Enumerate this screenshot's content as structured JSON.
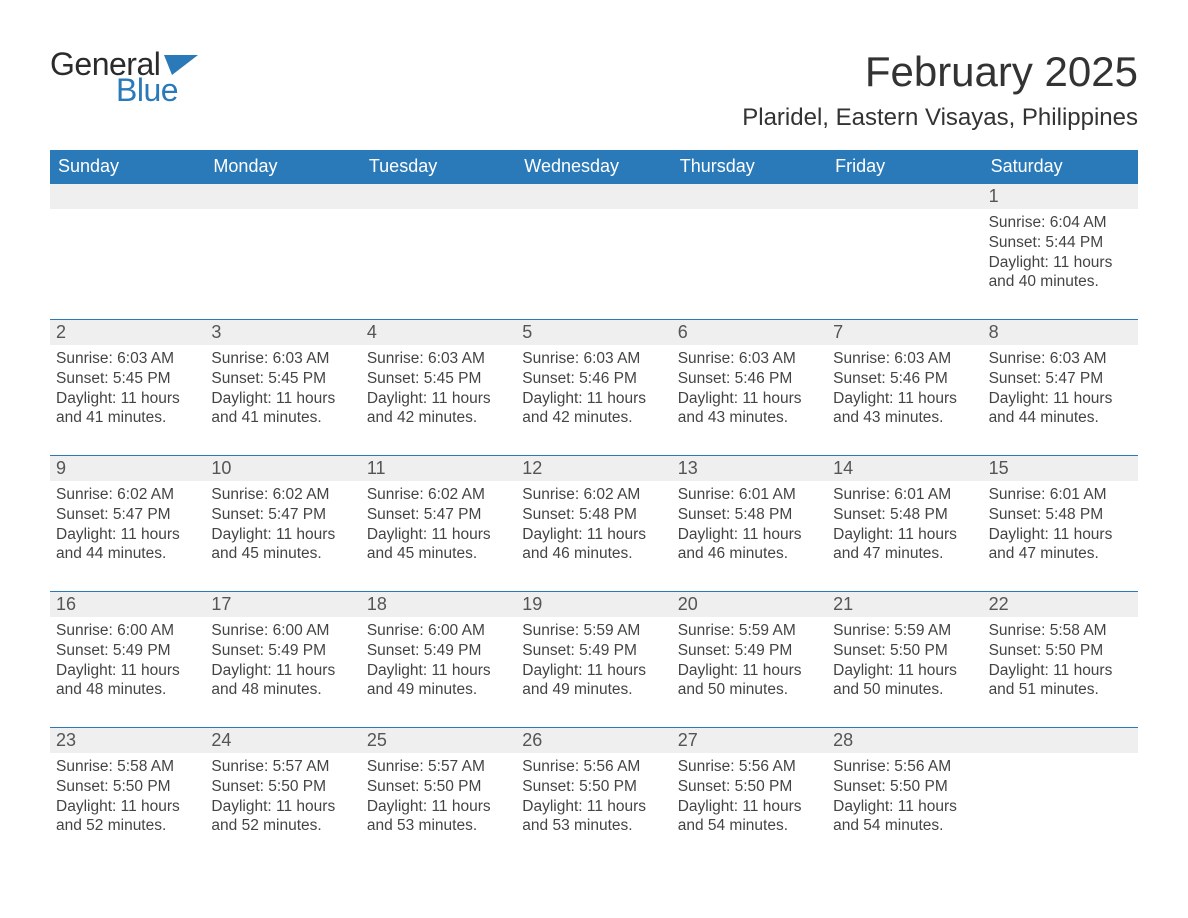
{
  "logo": {
    "text1": "General",
    "text2": "Blue"
  },
  "title": "February 2025",
  "location": "Plaridel, Eastern Visayas, Philippines",
  "colors": {
    "header_bg": "#2a7ab9",
    "header_text": "#ffffff",
    "daynum_bg": "#efefef",
    "border_top": "#2a7ab9",
    "body_text": "#444444",
    "logo_blue": "#2a7ab9"
  },
  "weekdays": [
    "Sunday",
    "Monday",
    "Tuesday",
    "Wednesday",
    "Thursday",
    "Friday",
    "Saturday"
  ],
  "weeks": [
    {
      "nums": [
        "",
        "",
        "",
        "",
        "",
        "",
        "1"
      ],
      "cells": [
        {},
        {},
        {},
        {},
        {},
        {},
        {
          "sunrise": "Sunrise: 6:04 AM",
          "sunset": "Sunset: 5:44 PM",
          "daylight": "Daylight: 11 hours and 40 minutes."
        }
      ]
    },
    {
      "nums": [
        "2",
        "3",
        "4",
        "5",
        "6",
        "7",
        "8"
      ],
      "cells": [
        {
          "sunrise": "Sunrise: 6:03 AM",
          "sunset": "Sunset: 5:45 PM",
          "daylight": "Daylight: 11 hours and 41 minutes."
        },
        {
          "sunrise": "Sunrise: 6:03 AM",
          "sunset": "Sunset: 5:45 PM",
          "daylight": "Daylight: 11 hours and 41 minutes."
        },
        {
          "sunrise": "Sunrise: 6:03 AM",
          "sunset": "Sunset: 5:45 PM",
          "daylight": "Daylight: 11 hours and 42 minutes."
        },
        {
          "sunrise": "Sunrise: 6:03 AM",
          "sunset": "Sunset: 5:46 PM",
          "daylight": "Daylight: 11 hours and 42 minutes."
        },
        {
          "sunrise": "Sunrise: 6:03 AM",
          "sunset": "Sunset: 5:46 PM",
          "daylight": "Daylight: 11 hours and 43 minutes."
        },
        {
          "sunrise": "Sunrise: 6:03 AM",
          "sunset": "Sunset: 5:46 PM",
          "daylight": "Daylight: 11 hours and 43 minutes."
        },
        {
          "sunrise": "Sunrise: 6:03 AM",
          "sunset": "Sunset: 5:47 PM",
          "daylight": "Daylight: 11 hours and 44 minutes."
        }
      ]
    },
    {
      "nums": [
        "9",
        "10",
        "11",
        "12",
        "13",
        "14",
        "15"
      ],
      "cells": [
        {
          "sunrise": "Sunrise: 6:02 AM",
          "sunset": "Sunset: 5:47 PM",
          "daylight": "Daylight: 11 hours and 44 minutes."
        },
        {
          "sunrise": "Sunrise: 6:02 AM",
          "sunset": "Sunset: 5:47 PM",
          "daylight": "Daylight: 11 hours and 45 minutes."
        },
        {
          "sunrise": "Sunrise: 6:02 AM",
          "sunset": "Sunset: 5:47 PM",
          "daylight": "Daylight: 11 hours and 45 minutes."
        },
        {
          "sunrise": "Sunrise: 6:02 AM",
          "sunset": "Sunset: 5:48 PM",
          "daylight": "Daylight: 11 hours and 46 minutes."
        },
        {
          "sunrise": "Sunrise: 6:01 AM",
          "sunset": "Sunset: 5:48 PM",
          "daylight": "Daylight: 11 hours and 46 minutes."
        },
        {
          "sunrise": "Sunrise: 6:01 AM",
          "sunset": "Sunset: 5:48 PM",
          "daylight": "Daylight: 11 hours and 47 minutes."
        },
        {
          "sunrise": "Sunrise: 6:01 AM",
          "sunset": "Sunset: 5:48 PM",
          "daylight": "Daylight: 11 hours and 47 minutes."
        }
      ]
    },
    {
      "nums": [
        "16",
        "17",
        "18",
        "19",
        "20",
        "21",
        "22"
      ],
      "cells": [
        {
          "sunrise": "Sunrise: 6:00 AM",
          "sunset": "Sunset: 5:49 PM",
          "daylight": "Daylight: 11 hours and 48 minutes."
        },
        {
          "sunrise": "Sunrise: 6:00 AM",
          "sunset": "Sunset: 5:49 PM",
          "daylight": "Daylight: 11 hours and 48 minutes."
        },
        {
          "sunrise": "Sunrise: 6:00 AM",
          "sunset": "Sunset: 5:49 PM",
          "daylight": "Daylight: 11 hours and 49 minutes."
        },
        {
          "sunrise": "Sunrise: 5:59 AM",
          "sunset": "Sunset: 5:49 PM",
          "daylight": "Daylight: 11 hours and 49 minutes."
        },
        {
          "sunrise": "Sunrise: 5:59 AM",
          "sunset": "Sunset: 5:49 PM",
          "daylight": "Daylight: 11 hours and 50 minutes."
        },
        {
          "sunrise": "Sunrise: 5:59 AM",
          "sunset": "Sunset: 5:50 PM",
          "daylight": "Daylight: 11 hours and 50 minutes."
        },
        {
          "sunrise": "Sunrise: 5:58 AM",
          "sunset": "Sunset: 5:50 PM",
          "daylight": "Daylight: 11 hours and 51 minutes."
        }
      ]
    },
    {
      "nums": [
        "23",
        "24",
        "25",
        "26",
        "27",
        "28",
        ""
      ],
      "cells": [
        {
          "sunrise": "Sunrise: 5:58 AM",
          "sunset": "Sunset: 5:50 PM",
          "daylight": "Daylight: 11 hours and 52 minutes."
        },
        {
          "sunrise": "Sunrise: 5:57 AM",
          "sunset": "Sunset: 5:50 PM",
          "daylight": "Daylight: 11 hours and 52 minutes."
        },
        {
          "sunrise": "Sunrise: 5:57 AM",
          "sunset": "Sunset: 5:50 PM",
          "daylight": "Daylight: 11 hours and 53 minutes."
        },
        {
          "sunrise": "Sunrise: 5:56 AM",
          "sunset": "Sunset: 5:50 PM",
          "daylight": "Daylight: 11 hours and 53 minutes."
        },
        {
          "sunrise": "Sunrise: 5:56 AM",
          "sunset": "Sunset: 5:50 PM",
          "daylight": "Daylight: 11 hours and 54 minutes."
        },
        {
          "sunrise": "Sunrise: 5:56 AM",
          "sunset": "Sunset: 5:50 PM",
          "daylight": "Daylight: 11 hours and 54 minutes."
        },
        {}
      ]
    }
  ]
}
